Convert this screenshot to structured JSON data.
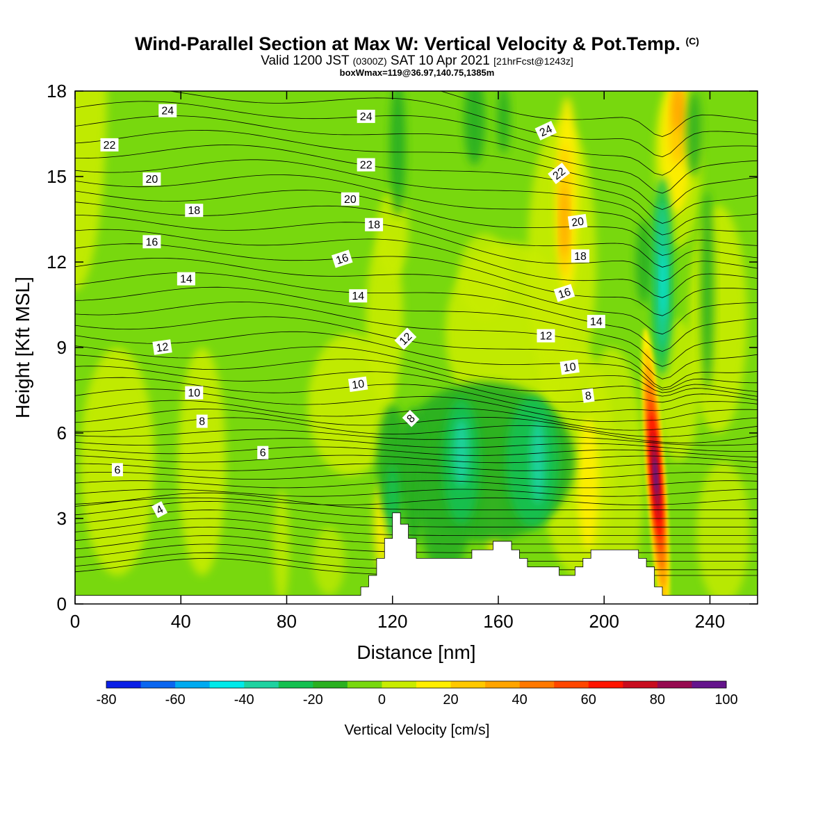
{
  "header": {
    "title": "Wind-Parallel Section at Max W: Vertical Velocity & Pot.Temp.",
    "title_mark": "(C)",
    "valid_prefix": "Valid 1200 JST",
    "valid_utc": "(0300Z)",
    "valid_date": "SAT 10 Apr 2021",
    "forecast": "[21hrFcst@1243z]",
    "box_info": "boxWmax=119@36.97,140.75,1385m"
  },
  "chart_data": {
    "type": "heatmap",
    "title": "Wind-Parallel Section at Max W: Vertical Velocity & Pot.Temp.",
    "xlabel": "Distance [nm]",
    "ylabel": "Height [Kft MSL]",
    "xlim": [
      0,
      258
    ],
    "ylim": [
      0,
      18
    ],
    "x_ticks": [
      0,
      40,
      80,
      120,
      160,
      200,
      240
    ],
    "y_ticks": [
      0,
      3,
      6,
      9,
      12,
      15,
      18
    ],
    "colorbar": {
      "label": "Vertical Velocity [cm/s]",
      "levels": [
        -80,
        -70,
        -60,
        -50,
        -40,
        -30,
        -20,
        -10,
        0,
        10,
        20,
        30,
        40,
        50,
        60,
        70,
        80,
        90,
        100
      ],
      "tick_labels": [
        "-80",
        "-60",
        "-40",
        "-20",
        "0",
        "20",
        "40",
        "60",
        "80",
        "100"
      ],
      "colors": [
        "#0a1fe6",
        "#0a66f0",
        "#00aaf0",
        "#00eaea",
        "#1ed2a0",
        "#14c050",
        "#2ab020",
        "#78d80e",
        "#c8ec00",
        "#ffee00",
        "#ffc800",
        "#ffa400",
        "#ff7800",
        "#ff4600",
        "#ff1400",
        "#c80c1e",
        "#960a50",
        "#64148c"
      ]
    },
    "terrain": {
      "x": [
        0,
        105,
        108,
        108,
        111,
        111,
        114,
        114,
        117,
        117,
        120,
        120,
        123,
        123,
        126,
        126,
        129,
        129,
        132,
        132,
        135,
        135,
        138,
        138,
        150,
        150,
        158,
        158,
        165,
        165,
        168,
        168,
        171,
        171,
        174,
        174,
        183,
        183,
        189,
        189,
        192,
        192,
        195,
        195,
        198,
        198,
        213,
        213,
        216,
        216,
        219,
        219,
        222,
        222,
        225,
        225,
        258
      ],
      "y": [
        0.3,
        0.3,
        0.3,
        0.6,
        0.6,
        1.0,
        1.0,
        1.6,
        1.6,
        2.3,
        2.3,
        3.2,
        3.2,
        2.8,
        2.8,
        2.3,
        2.3,
        1.6,
        1.6,
        1.6,
        1.6,
        1.6,
        1.6,
        1.6,
        1.6,
        1.9,
        1.9,
        2.2,
        2.2,
        1.9,
        1.9,
        1.6,
        1.6,
        1.3,
        1.3,
        1.3,
        1.3,
        1.0,
        1.0,
        1.3,
        1.3,
        1.6,
        1.6,
        1.9,
        1.9,
        1.9,
        1.9,
        1.6,
        1.6,
        1.3,
        1.3,
        0.6,
        0.6,
        0.3,
        0.3,
        0.3,
        0.3
      ]
    },
    "theta_contours": {
      "levels": [
        4,
        6,
        8,
        10,
        12,
        14,
        16,
        18,
        20,
        22,
        24
      ],
      "labels": [
        {
          "text": "24",
          "x": 35,
          "y": 17.3,
          "angle": 0
        },
        {
          "text": "22",
          "x": 13,
          "y": 16.1,
          "angle": 0
        },
        {
          "text": "20",
          "x": 29,
          "y": 14.9,
          "angle": 0
        },
        {
          "text": "18",
          "x": 45,
          "y": 13.8,
          "angle": 0
        },
        {
          "text": "16",
          "x": 29,
          "y": 12.7,
          "angle": 0
        },
        {
          "text": "14",
          "x": 42,
          "y": 11.4,
          "angle": 0
        },
        {
          "text": "12",
          "x": 33,
          "y": 9.0,
          "angle": -8
        },
        {
          "text": "10",
          "x": 45,
          "y": 7.4,
          "angle": 0
        },
        {
          "text": "8",
          "x": 48,
          "y": 6.4,
          "angle": 0
        },
        {
          "text": "6",
          "x": 71,
          "y": 5.3,
          "angle": 0
        },
        {
          "text": "6",
          "x": 16,
          "y": 4.7,
          "angle": 0
        },
        {
          "text": "4",
          "x": 32,
          "y": 3.3,
          "angle": -28
        },
        {
          "text": "24",
          "x": 110,
          "y": 17.1,
          "angle": 0
        },
        {
          "text": "22",
          "x": 110,
          "y": 15.4,
          "angle": 0
        },
        {
          "text": "20",
          "x": 104,
          "y": 14.2,
          "angle": 0
        },
        {
          "text": "18",
          "x": 113,
          "y": 13.3,
          "angle": 0
        },
        {
          "text": "16",
          "x": 101,
          "y": 12.1,
          "angle": -18
        },
        {
          "text": "14",
          "x": 107,
          "y": 10.8,
          "angle": 0
        },
        {
          "text": "12",
          "x": 125,
          "y": 9.3,
          "angle": -45
        },
        {
          "text": "10",
          "x": 107,
          "y": 7.7,
          "angle": -8
        },
        {
          "text": "8",
          "x": 127,
          "y": 6.5,
          "angle": -45
        },
        {
          "text": "24",
          "x": 178,
          "y": 16.6,
          "angle": -25
        },
        {
          "text": "22",
          "x": 183,
          "y": 15.1,
          "angle": -38
        },
        {
          "text": "20",
          "x": 190,
          "y": 13.4,
          "angle": -8
        },
        {
          "text": "18",
          "x": 191,
          "y": 12.2,
          "angle": 0
        },
        {
          "text": "16",
          "x": 185,
          "y": 10.9,
          "angle": -18
        },
        {
          "text": "14",
          "x": 197,
          "y": 9.9,
          "angle": 0
        },
        {
          "text": "12",
          "x": 178,
          "y": 9.4,
          "angle": 0
        },
        {
          "text": "10",
          "x": 187,
          "y": 8.3,
          "angle": -8
        },
        {
          "text": "8",
          "x": 194,
          "y": 7.3,
          "angle": -8
        }
      ]
    },
    "velocity_features": [
      {
        "desc": "strong updraft core",
        "x": 219.5,
        "y": 4.5,
        "max": 100
      },
      {
        "desc": "upper-level updraft band",
        "x": 184,
        "y": 14,
        "max": 35
      },
      {
        "desc": "upper-level updraft band",
        "x": 226,
        "y": 17,
        "max": 35
      },
      {
        "desc": "downdraft core",
        "x": 175,
        "y": 5,
        "min": -40
      },
      {
        "desc": "downdraft core",
        "x": 146,
        "y": 5,
        "min": -30
      },
      {
        "desc": "downdraft band",
        "x": 220,
        "y": 11,
        "min": -40
      }
    ]
  }
}
